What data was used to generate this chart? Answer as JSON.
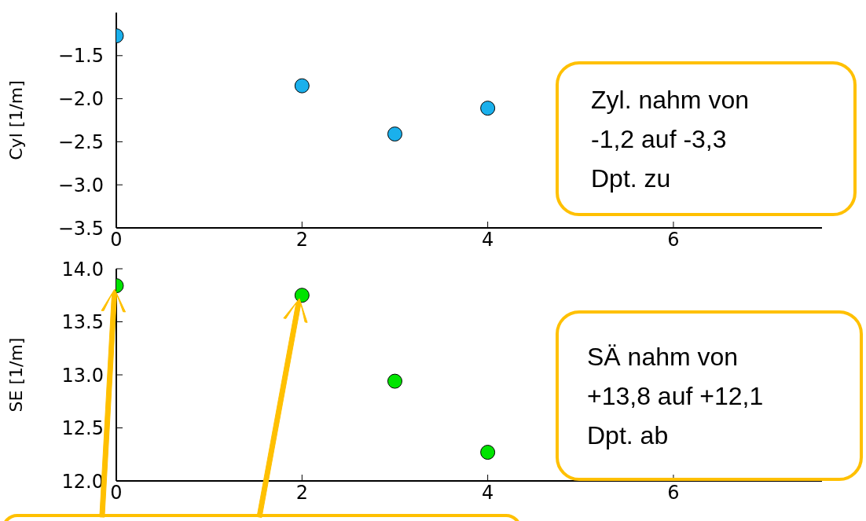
{
  "chart_data": [
    {
      "type": "scatter",
      "ylabel": "Cyl [1/m]",
      "x": [
        0,
        2,
        3,
        4
      ],
      "values": [
        -1.27,
        -1.85,
        -2.41,
        -2.11
      ],
      "color": "#1ab0ec",
      "marker": "circle",
      "xlim": [
        0,
        7.6
      ],
      "xticks": [
        0,
        2,
        4,
        6
      ],
      "ylim": [
        -3.5,
        -1.0
      ],
      "yticks": [
        {
          "value": -3.5,
          "label": "−3.5"
        },
        {
          "value": -3.0,
          "label": "−3.0"
        },
        {
          "value": -2.5,
          "label": "−2.5"
        },
        {
          "value": -2.0,
          "label": "−2.0"
        },
        {
          "value": -1.5,
          "label": "−1.5"
        }
      ],
      "annotations": [
        "Zyl. nahm von\n-1,2 auf -3,3\nDpt. zu"
      ]
    },
    {
      "type": "scatter",
      "ylabel": "SE [1/m]",
      "x": [
        0,
        2,
        3,
        4
      ],
      "values": [
        13.84,
        13.75,
        12.94,
        12.27
      ],
      "color": "#00e400",
      "marker": "circle",
      "xlim": [
        0,
        7.6
      ],
      "xticks": [
        0,
        2,
        4,
        6
      ],
      "ylim": [
        12.0,
        14.0
      ],
      "yticks": [
        {
          "value": 12.0,
          "label": "12.0"
        },
        {
          "value": 12.5,
          "label": "12.5"
        },
        {
          "value": 13.0,
          "label": "13.0"
        },
        {
          "value": 13.5,
          "label": "13.5"
        },
        {
          "value": 14.0,
          "label": "14.0"
        }
      ],
      "annotations": [
        "SÄ nahm von\n+13,8 auf +12,1\nDpt. ab"
      ]
    }
  ]
}
